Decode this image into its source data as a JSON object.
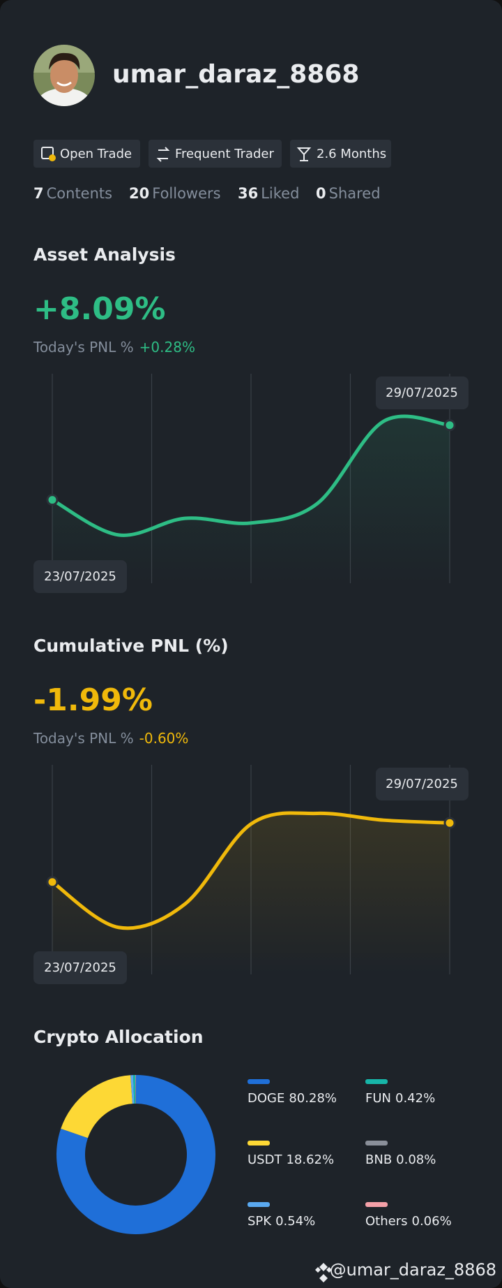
{
  "profile": {
    "username": "umar_daraz_8868"
  },
  "badges": [
    "Open Trade",
    "Frequent Trader",
    "2.6 Months"
  ],
  "stats": [
    {
      "count": "7",
      "label": "Contents"
    },
    {
      "count": "20",
      "label": "Followers"
    },
    {
      "count": "36",
      "label": "Liked"
    },
    {
      "count": "0",
      "label": "Shared"
    }
  ],
  "chart_data": [
    {
      "type": "line",
      "title": "Asset Analysis",
      "headline": "+8.09%",
      "pnl_label": "Today's PNL %",
      "pnl_value": "+0.28%",
      "categories": [
        "23/07/2025",
        null,
        null,
        null,
        null,
        null,
        "29/07/2025"
      ],
      "values": [
        0,
        -3.8,
        -2.0,
        -2.5,
        -0.4,
        8.5,
        8.09
      ],
      "color": "#2ebd85",
      "ylim": [
        -6,
        12
      ]
    },
    {
      "type": "line",
      "title": "Cumulative PNL (%)",
      "headline": "-1.99%",
      "pnl_label": "Today's PNL %",
      "pnl_value": "-0.60%",
      "categories": [
        "23/07/2025",
        null,
        null,
        null,
        null,
        null,
        "29/07/2025"
      ],
      "values": [
        -8.1,
        -12.8,
        -10.4,
        -2.1,
        -1.0,
        -1.7,
        -1.99
      ],
      "color": "#f0b90b",
      "ylim": [
        -16,
        2
      ]
    },
    {
      "type": "pie",
      "title": "Crypto Allocation",
      "categories": [
        "DOGE",
        "USDT",
        "SPK",
        "FUN",
        "BNB",
        "Others"
      ],
      "values": [
        80.28,
        18.62,
        0.54,
        0.42,
        0.08,
        0.06
      ],
      "value_labels": [
        "80.28%",
        "18.62%",
        "0.54%",
        "0.42%",
        "0.08%",
        "0.06%"
      ],
      "colors": [
        "#1f6fd8",
        "#fdd835",
        "#5aa9f0",
        "#17b5a8",
        "#8a8f99",
        "#f4a0a8"
      ]
    }
  ],
  "watermark": "@umar_daraz_8868"
}
